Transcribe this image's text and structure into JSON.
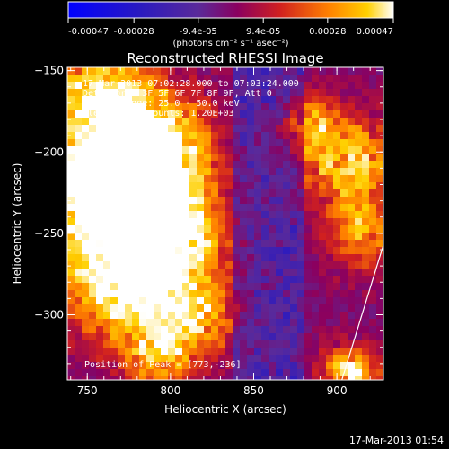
{
  "chart_data": {
    "type": "heatmap",
    "title": "Reconstructed RHESSI Image",
    "xlabel": "Heliocentric X (arcsec)",
    "ylabel": "Heliocentric Y (arcsec)",
    "xlim": [
      738,
      928
    ],
    "ylim": [
      -340,
      -148
    ],
    "x_ticks": [
      750,
      800,
      850,
      900
    ],
    "y_ticks": [
      -150,
      -200,
      -250,
      -300
    ],
    "colorbar": {
      "min": -0.00047,
      "max": 0.00047,
      "tick_values": [
        -0.00047,
        -0.00028,
        -9.4e-05,
        9.4e-05,
        0.00028,
        0.00047
      ],
      "tick_labels": [
        "-0.00047",
        "-0.00028",
        "-9.4e-05",
        "9.4e-05",
        "0.00028",
        "0.00047"
      ],
      "unit_label": "(photons cm⁻² s⁻¹ asec⁻²)"
    },
    "annotations": [
      "17-Mar-2013 07:02:28.000 to 07:03:24.000",
      "Detectors: 3F 5F 6F 7F 8F 9F, Att 0",
      "Energy Range: 25.0 - 50.0 keV",
      "Clean     Total counts: 1.20E+03"
    ],
    "peak_label": "Position of Peak = [773,-236]",
    "peak": [
      773,
      -236
    ],
    "limb_line": [
      [
        903,
        -340
      ],
      [
        928,
        -257
      ]
    ]
  },
  "footer": "17-Mar-2013 01:54",
  "colors": {
    "background": "#000000",
    "axes": "#ffffff",
    "colormap": [
      "#0000ff",
      "#3a1d8f",
      "#5a2a9a",
      "#8a0050",
      "#d02020",
      "#ff8000",
      "#ffd000",
      "#ffffff"
    ]
  }
}
